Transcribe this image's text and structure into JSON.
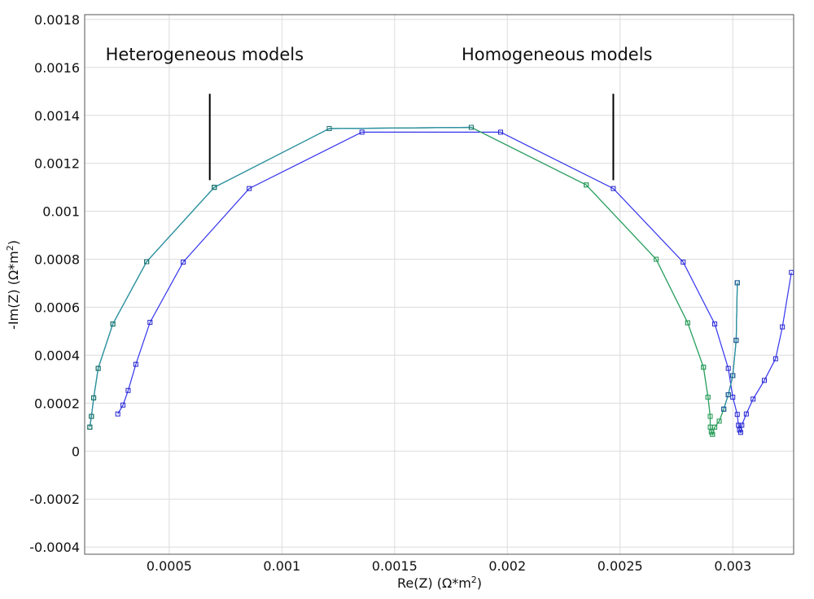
{
  "chart_data": {
    "type": "line",
    "xlabel": "Re(Z) (Ω*m",
    "xlabel_sup": "2",
    "xlabel_end": ")",
    "ylabel": "-Im(Z) (Ω*m",
    "ylabel_sup": "2",
    "ylabel_end": ")",
    "xlim": [
      0.000125,
      0.00327
    ],
    "ylim": [
      -0.00043,
      0.00182
    ],
    "x_ticks": [
      0.0005,
      0.001,
      0.0015,
      0.002,
      0.0025,
      0.003
    ],
    "x_tick_labels": [
      "0.0005",
      "0.001",
      "0.0015",
      "0.002",
      "0.0025",
      "0.003"
    ],
    "y_ticks": [
      0.0018,
      0.0016,
      0.0014,
      0.0012,
      0.001,
      0.0008,
      0.0006,
      0.0004,
      0.0002,
      0,
      -0.0002,
      -0.0004
    ],
    "y_tick_labels": [
      "0.0018",
      "0.0016",
      "0.0014",
      "0.0012",
      "0.001",
      "0.0008",
      "0.0006",
      "0.0004",
      "0.0002",
      "0",
      "-0.0002",
      "-0.0004"
    ],
    "grid": true,
    "legend": "none",
    "annotations": [
      {
        "text": "Heterogeneous models",
        "x": 0.000657,
        "y": 0.00163,
        "line_x": 0.00068,
        "line_y_top": 0.00149,
        "line_y_bottom": 0.00113
      },
      {
        "text": "Homogeneous models",
        "x": 0.00222,
        "y": 0.00163,
        "line_x": 0.00247,
        "line_y_top": 0.00149,
        "line_y_bottom": 0.00113
      }
    ],
    "series": [
      {
        "color": "#2e8fa8",
        "marker_color": "#2a6f6f",
        "points": [
          [
            0.000148,
            0.0001
          ],
          [
            0.000155,
            0.000145
          ],
          [
            0.000165,
            0.000222
          ],
          [
            0.000185,
            0.000345
          ],
          [
            0.00025,
            0.00053
          ],
          [
            0.0004,
            0.00079
          ],
          [
            0.0007,
            0.0011
          ],
          [
            0.00121,
            0.001345
          ],
          [
            0.00184,
            0.00135
          ],
          [
            0.00235,
            0.00111
          ],
          [
            0.00266,
            0.0008
          ],
          [
            0.0028,
            0.000535
          ],
          [
            0.00287,
            0.00035
          ],
          [
            0.00289,
            0.000225
          ],
          [
            0.0029,
            0.000145
          ],
          [
            0.0029,
            0.0001
          ],
          [
            0.002905,
            8e-05
          ],
          [
            0.00291,
            7e-05
          ],
          [
            0.00292,
            0.0001
          ],
          [
            0.00294,
            0.000125
          ],
          [
            0.00296,
            0.000175
          ],
          [
            0.00298,
            0.000235
          ],
          [
            0.003,
            0.000315
          ],
          [
            0.003015,
            0.000462
          ],
          [
            0.00302,
            0.000702
          ]
        ]
      },
      {
        "color": "#3333ee",
        "marker_color": "#2222cc",
        "points": [
          [
            0.000272,
            0.000155
          ],
          [
            0.000295,
            0.000192
          ],
          [
            0.000318,
            0.000253
          ],
          [
            0.000352,
            0.000362
          ],
          [
            0.000415,
            0.000537
          ],
          [
            0.000562,
            0.000788
          ],
          [
            0.000855,
            0.001095
          ],
          [
            0.001355,
            0.00133
          ],
          [
            0.00197,
            0.00133
          ],
          [
            0.00247,
            0.001095
          ],
          [
            0.00278,
            0.000788
          ],
          [
            0.00292,
            0.00053
          ],
          [
            0.00298,
            0.000345
          ],
          [
            0.003,
            0.000225
          ],
          [
            0.00302,
            0.000153
          ],
          [
            0.003025,
            0.000108
          ],
          [
            0.00303,
            8.8e-05
          ],
          [
            0.003035,
            7.8e-05
          ],
          [
            0.00304,
            0.000108
          ],
          [
            0.00306,
            0.000155
          ],
          [
            0.00309,
            0.000217
          ],
          [
            0.00314,
            0.000295
          ],
          [
            0.00319,
            0.000385
          ],
          [
            0.00322,
            0.000518
          ],
          [
            0.00326,
            0.000745
          ]
        ]
      },
      {
        "color": "#2fa35a",
        "marker_color": "#2fa35a",
        "points": [
          [
            0.000148,
            0.0001
          ],
          [
            0.000155,
            0.000145
          ],
          [
            0.000165,
            0.000222
          ],
          [
            0.000185,
            0.000345
          ],
          [
            0.00025,
            0.00053
          ],
          [
            0.0004,
            0.00079
          ],
          [
            0.0007,
            0.0011
          ],
          [
            0.00121,
            0.001345
          ],
          [
            0.00184,
            0.00135
          ],
          [
            0.00235,
            0.00111
          ],
          [
            0.00266,
            0.0008
          ],
          [
            0.0028,
            0.000535
          ],
          [
            0.00287,
            0.00035
          ],
          [
            0.00289,
            0.000225
          ],
          [
            0.0029,
            0.000145
          ],
          [
            0.0029,
            0.0001
          ],
          [
            0.002905,
            8e-05
          ],
          [
            0.00291,
            7e-05
          ],
          [
            0.00292,
            0.0001
          ],
          [
            0.00294,
            0.000125
          ],
          [
            0.00296,
            0.000175
          ],
          [
            0.00298,
            0.000235
          ],
          [
            0.003,
            0.000315
          ],
          [
            0.003015,
            0.000462
          ],
          [
            0.00302,
            0.000702
          ]
        ]
      },
      {
        "color": "#2e8fa8",
        "marker_color": "#1e6f70",
        "points": [
          [
            0.000148,
            0.0001
          ],
          [
            0.000155,
            0.000145
          ],
          [
            0.000165,
            0.000222
          ],
          [
            0.000185,
            0.000345
          ],
          [
            0.00025,
            0.00053
          ],
          [
            0.0004,
            0.00079
          ],
          [
            0.0007,
            0.0011
          ],
          [
            0.00121,
            0.001345
          ],
          [
            0.00184,
            0.00135
          ]
        ]
      },
      {
        "color": "#2e8fa8",
        "marker_color": "#1a4fa0",
        "points": [
          [
            0.00296,
            0.000175
          ],
          [
            0.00298,
            0.000235
          ],
          [
            0.003,
            0.000315
          ],
          [
            0.003015,
            0.000462
          ],
          [
            0.00302,
            0.000702
          ]
        ]
      }
    ]
  }
}
